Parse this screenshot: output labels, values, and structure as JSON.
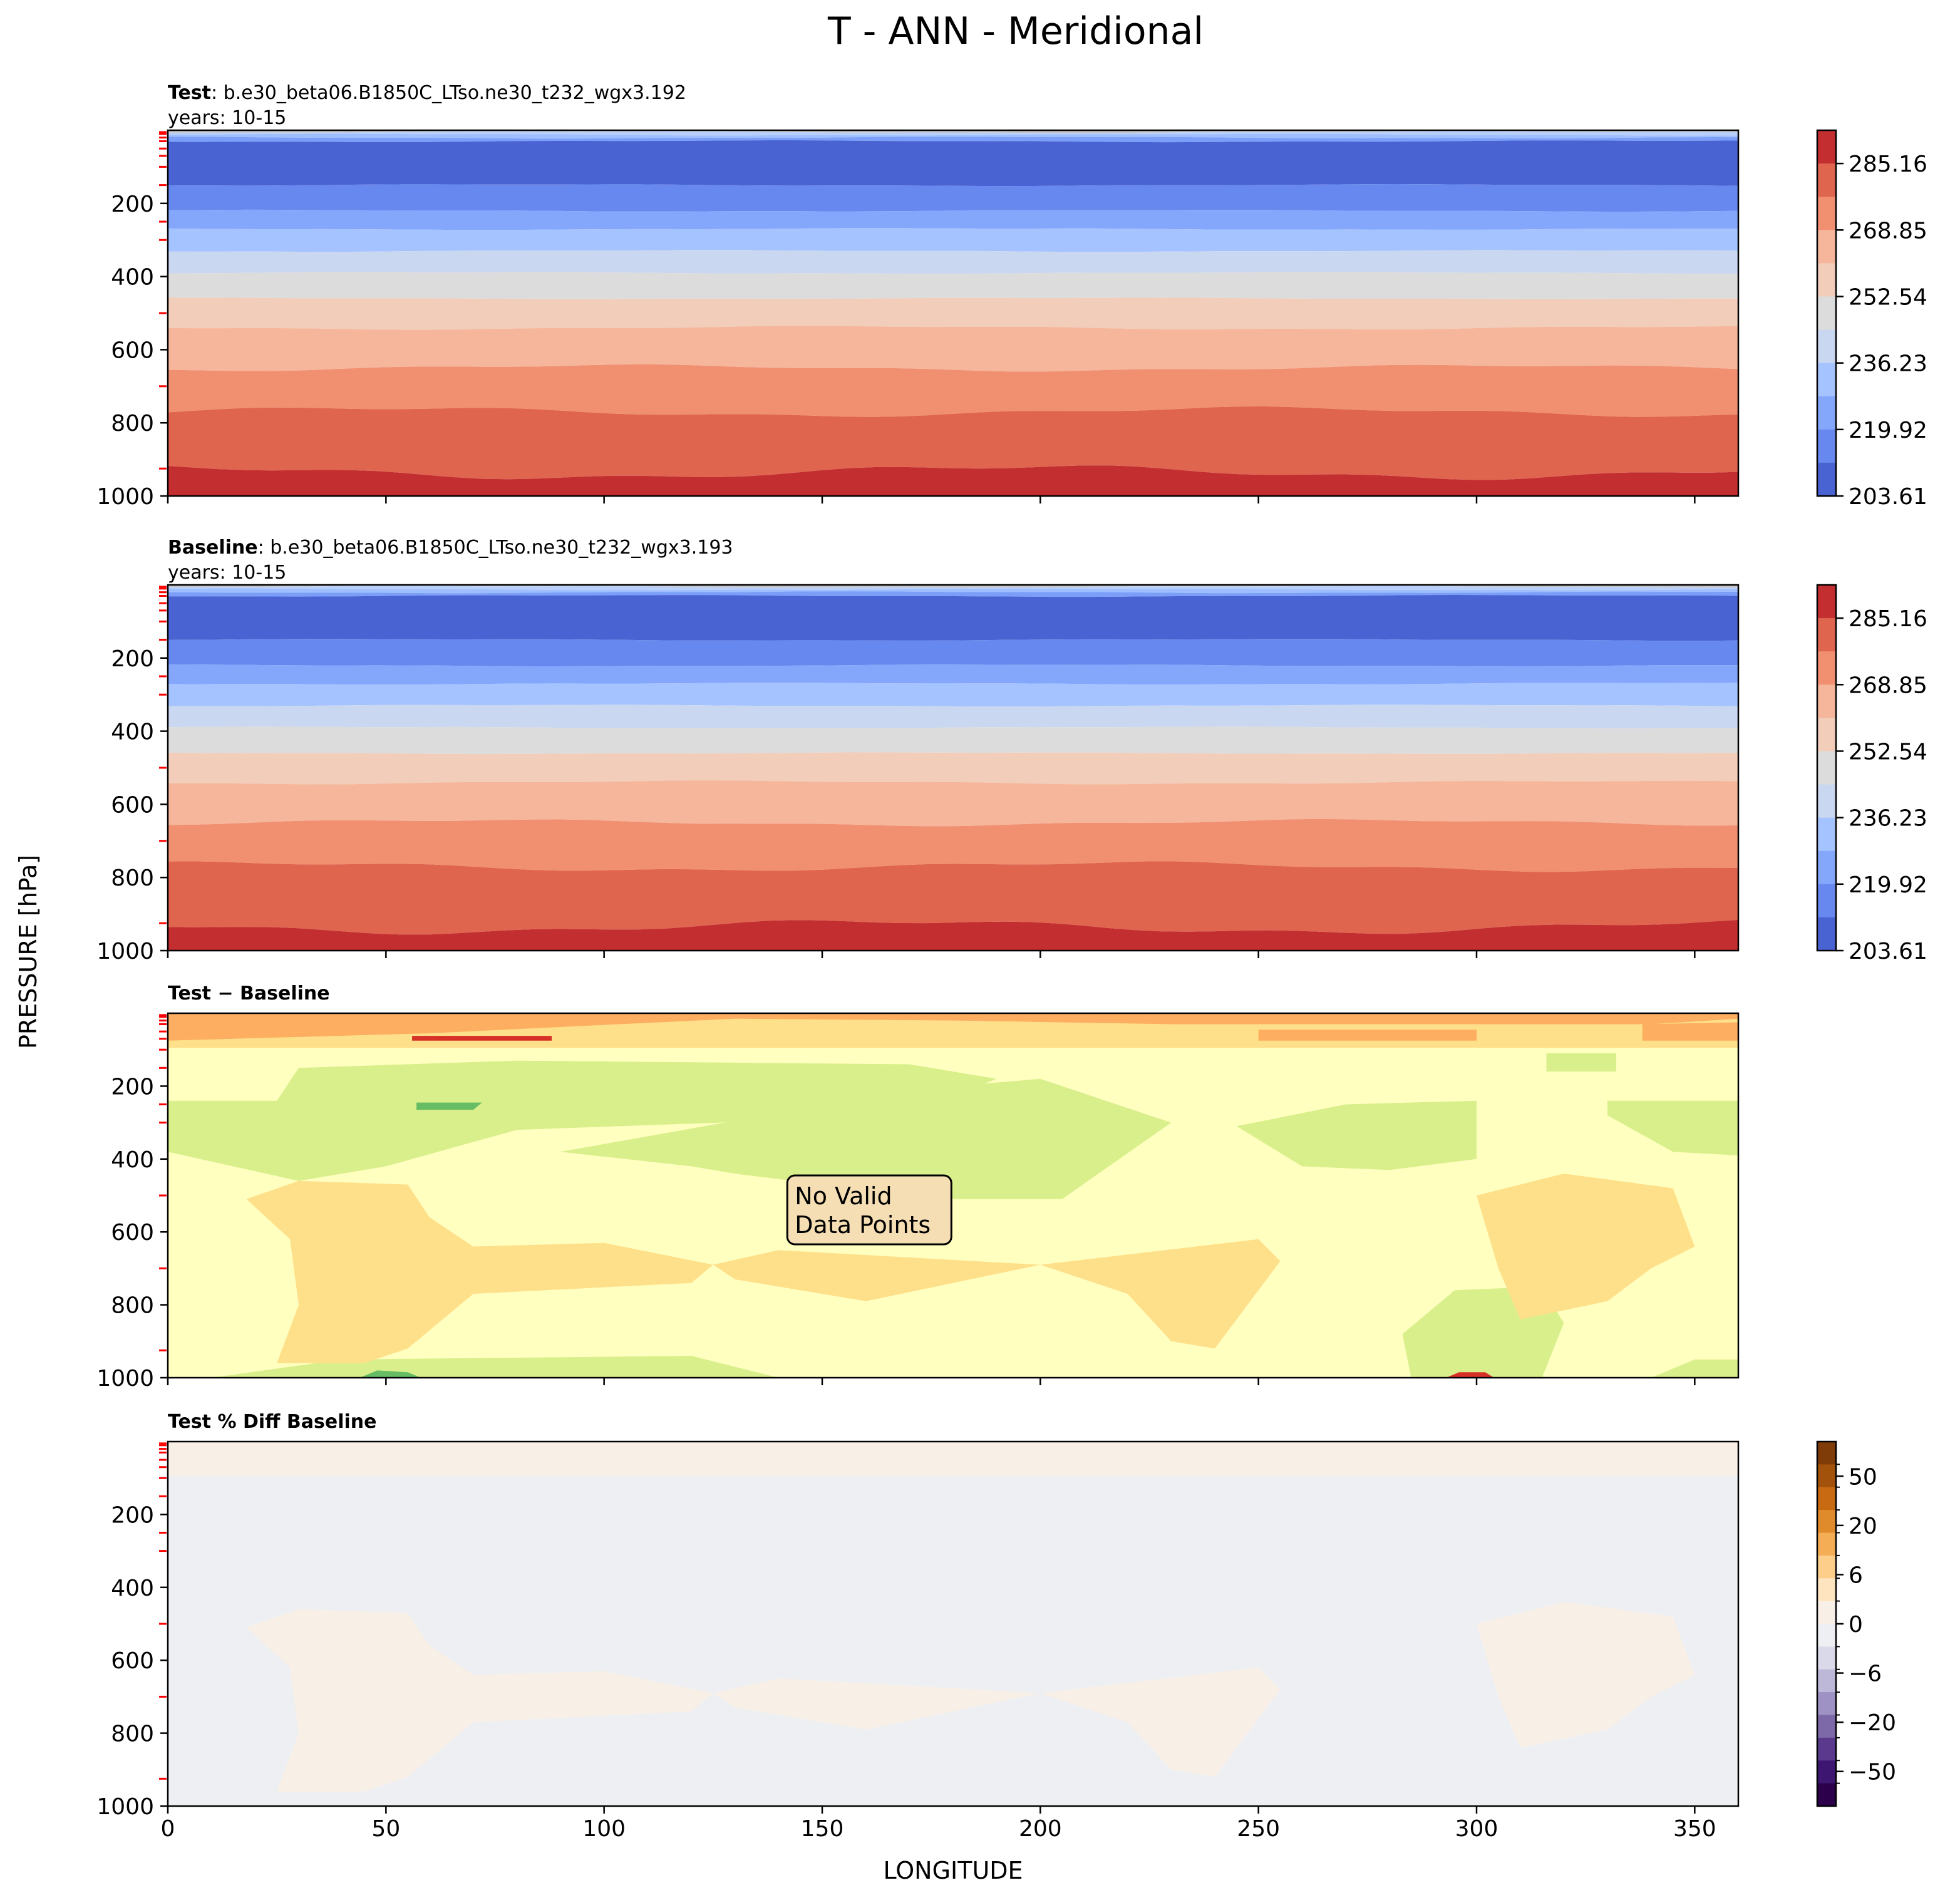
{
  "figure": {
    "title": "T - ANN - Meridional",
    "ylabel": "PRESSURE [hPa]",
    "xlabel": "LONGITUDE"
  },
  "chart_data": [
    {
      "type": "heatmap",
      "panel": "test",
      "label_bold": "Test",
      "label_rest": ": b.e30_beta06.B1850C_LTso.ne30_t232_wgx3.192",
      "years": "years: 10-15",
      "xlim": [
        0,
        360
      ],
      "ylim": [
        1000,
        0
      ],
      "yticks": [
        "200",
        "400",
        "600",
        "800",
        "1000"
      ],
      "colormap": "coolwarm",
      "colorbar_ticks": [
        "285.16",
        "268.85",
        "252.54",
        "236.23",
        "219.92",
        "203.61"
      ],
      "bands": [
        {
          "color": "#c5c2c4",
          "top": 0,
          "bottom": 5
        },
        {
          "color": "#b8d0f9",
          "top": 5,
          "bottom": 12
        },
        {
          "color": "#9ebeff",
          "top": 12,
          "bottom": 20
        },
        {
          "color": "#7b9ff9",
          "top": 20,
          "bottom": 30
        },
        {
          "color": "#4a63d3",
          "top": 30,
          "bottom": 150
        },
        {
          "color": "#6788ee",
          "top": 150,
          "bottom": 220
        },
        {
          "color": "#84a7fc",
          "top": 220,
          "bottom": 270
        },
        {
          "color": "#a5c3fe",
          "top": 270,
          "bottom": 330
        },
        {
          "color": "#c9d7f0",
          "top": 330,
          "bottom": 390
        },
        {
          "color": "#dddcdc",
          "top": 390,
          "bottom": 460
        },
        {
          "color": "#f1cdba",
          "top": 460,
          "bottom": 540
        },
        {
          "color": "#f5b69b",
          "top": 540,
          "bottom": 650
        },
        {
          "color": "#f18f71",
          "top": 650,
          "bottom": 770
        },
        {
          "color": "#e0654f",
          "top": 770,
          "bottom": 935
        },
        {
          "color": "#c32e31",
          "top": 935,
          "bottom": 1000
        }
      ]
    },
    {
      "type": "heatmap",
      "panel": "baseline",
      "label_bold": "Baseline",
      "label_rest": ": b.e30_beta06.B1850C_LTso.ne30_t232_wgx3.193",
      "years": "years: 10-15",
      "xlim": [
        0,
        360
      ],
      "ylim": [
        1000,
        0
      ],
      "yticks": [
        "200",
        "400",
        "600",
        "800",
        "1000"
      ],
      "colormap": "coolwarm",
      "colorbar_ticks": [
        "285.16",
        "268.85",
        "252.54",
        "236.23",
        "219.92",
        "203.61"
      ],
      "bands": [
        {
          "color": "#c5c2c4",
          "top": 0,
          "bottom": 5
        },
        {
          "color": "#b8d0f9",
          "top": 5,
          "bottom": 12
        },
        {
          "color": "#9ebeff",
          "top": 12,
          "bottom": 20
        },
        {
          "color": "#7b9ff9",
          "top": 20,
          "bottom": 30
        },
        {
          "color": "#4a63d3",
          "top": 30,
          "bottom": 150
        },
        {
          "color": "#6788ee",
          "top": 150,
          "bottom": 220
        },
        {
          "color": "#84a7fc",
          "top": 220,
          "bottom": 270
        },
        {
          "color": "#a5c3fe",
          "top": 270,
          "bottom": 330
        },
        {
          "color": "#c9d7f0",
          "top": 330,
          "bottom": 390
        },
        {
          "color": "#dddcdc",
          "top": 390,
          "bottom": 460
        },
        {
          "color": "#f1cdba",
          "top": 460,
          "bottom": 540
        },
        {
          "color": "#f5b69b",
          "top": 540,
          "bottom": 650
        },
        {
          "color": "#f18f71",
          "top": 650,
          "bottom": 770
        },
        {
          "color": "#e0654f",
          "top": 770,
          "bottom": 935
        },
        {
          "color": "#c32e31",
          "top": 935,
          "bottom": 1000
        }
      ]
    },
    {
      "type": "heatmap",
      "panel": "diff",
      "label_bold": "Test − Baseline",
      "annotation": [
        "No Valid",
        "Data Points"
      ],
      "xlim": [
        0,
        360
      ],
      "ylim": [
        1000,
        0
      ],
      "yticks": [
        "200",
        "400",
        "600",
        "800",
        "1000"
      ],
      "background": "#ffffbf",
      "colors": {
        "orange": "#fdae61",
        "light_orange": "#fee08b",
        "red": "#d73027",
        "green": "#d9ef8b",
        "teal": "#66bd63"
      }
    },
    {
      "type": "heatmap",
      "panel": "percent_diff",
      "label_bold": "Test % Diff Baseline",
      "xlim": [
        0,
        360
      ],
      "ylim": [
        1000,
        0
      ],
      "xticks": [
        "0",
        "50",
        "100",
        "150",
        "200",
        "250",
        "300",
        "350"
      ],
      "yticks": [
        "200",
        "400",
        "600",
        "800",
        "1000"
      ],
      "colormap": "PuOr_r",
      "background": "#eeeff2",
      "positive_color": "#f8f0e7",
      "colorbar_ticks": [
        "50",
        "20",
        "6",
        "0",
        "−6",
        "−20",
        "−50"
      ]
    }
  ]
}
